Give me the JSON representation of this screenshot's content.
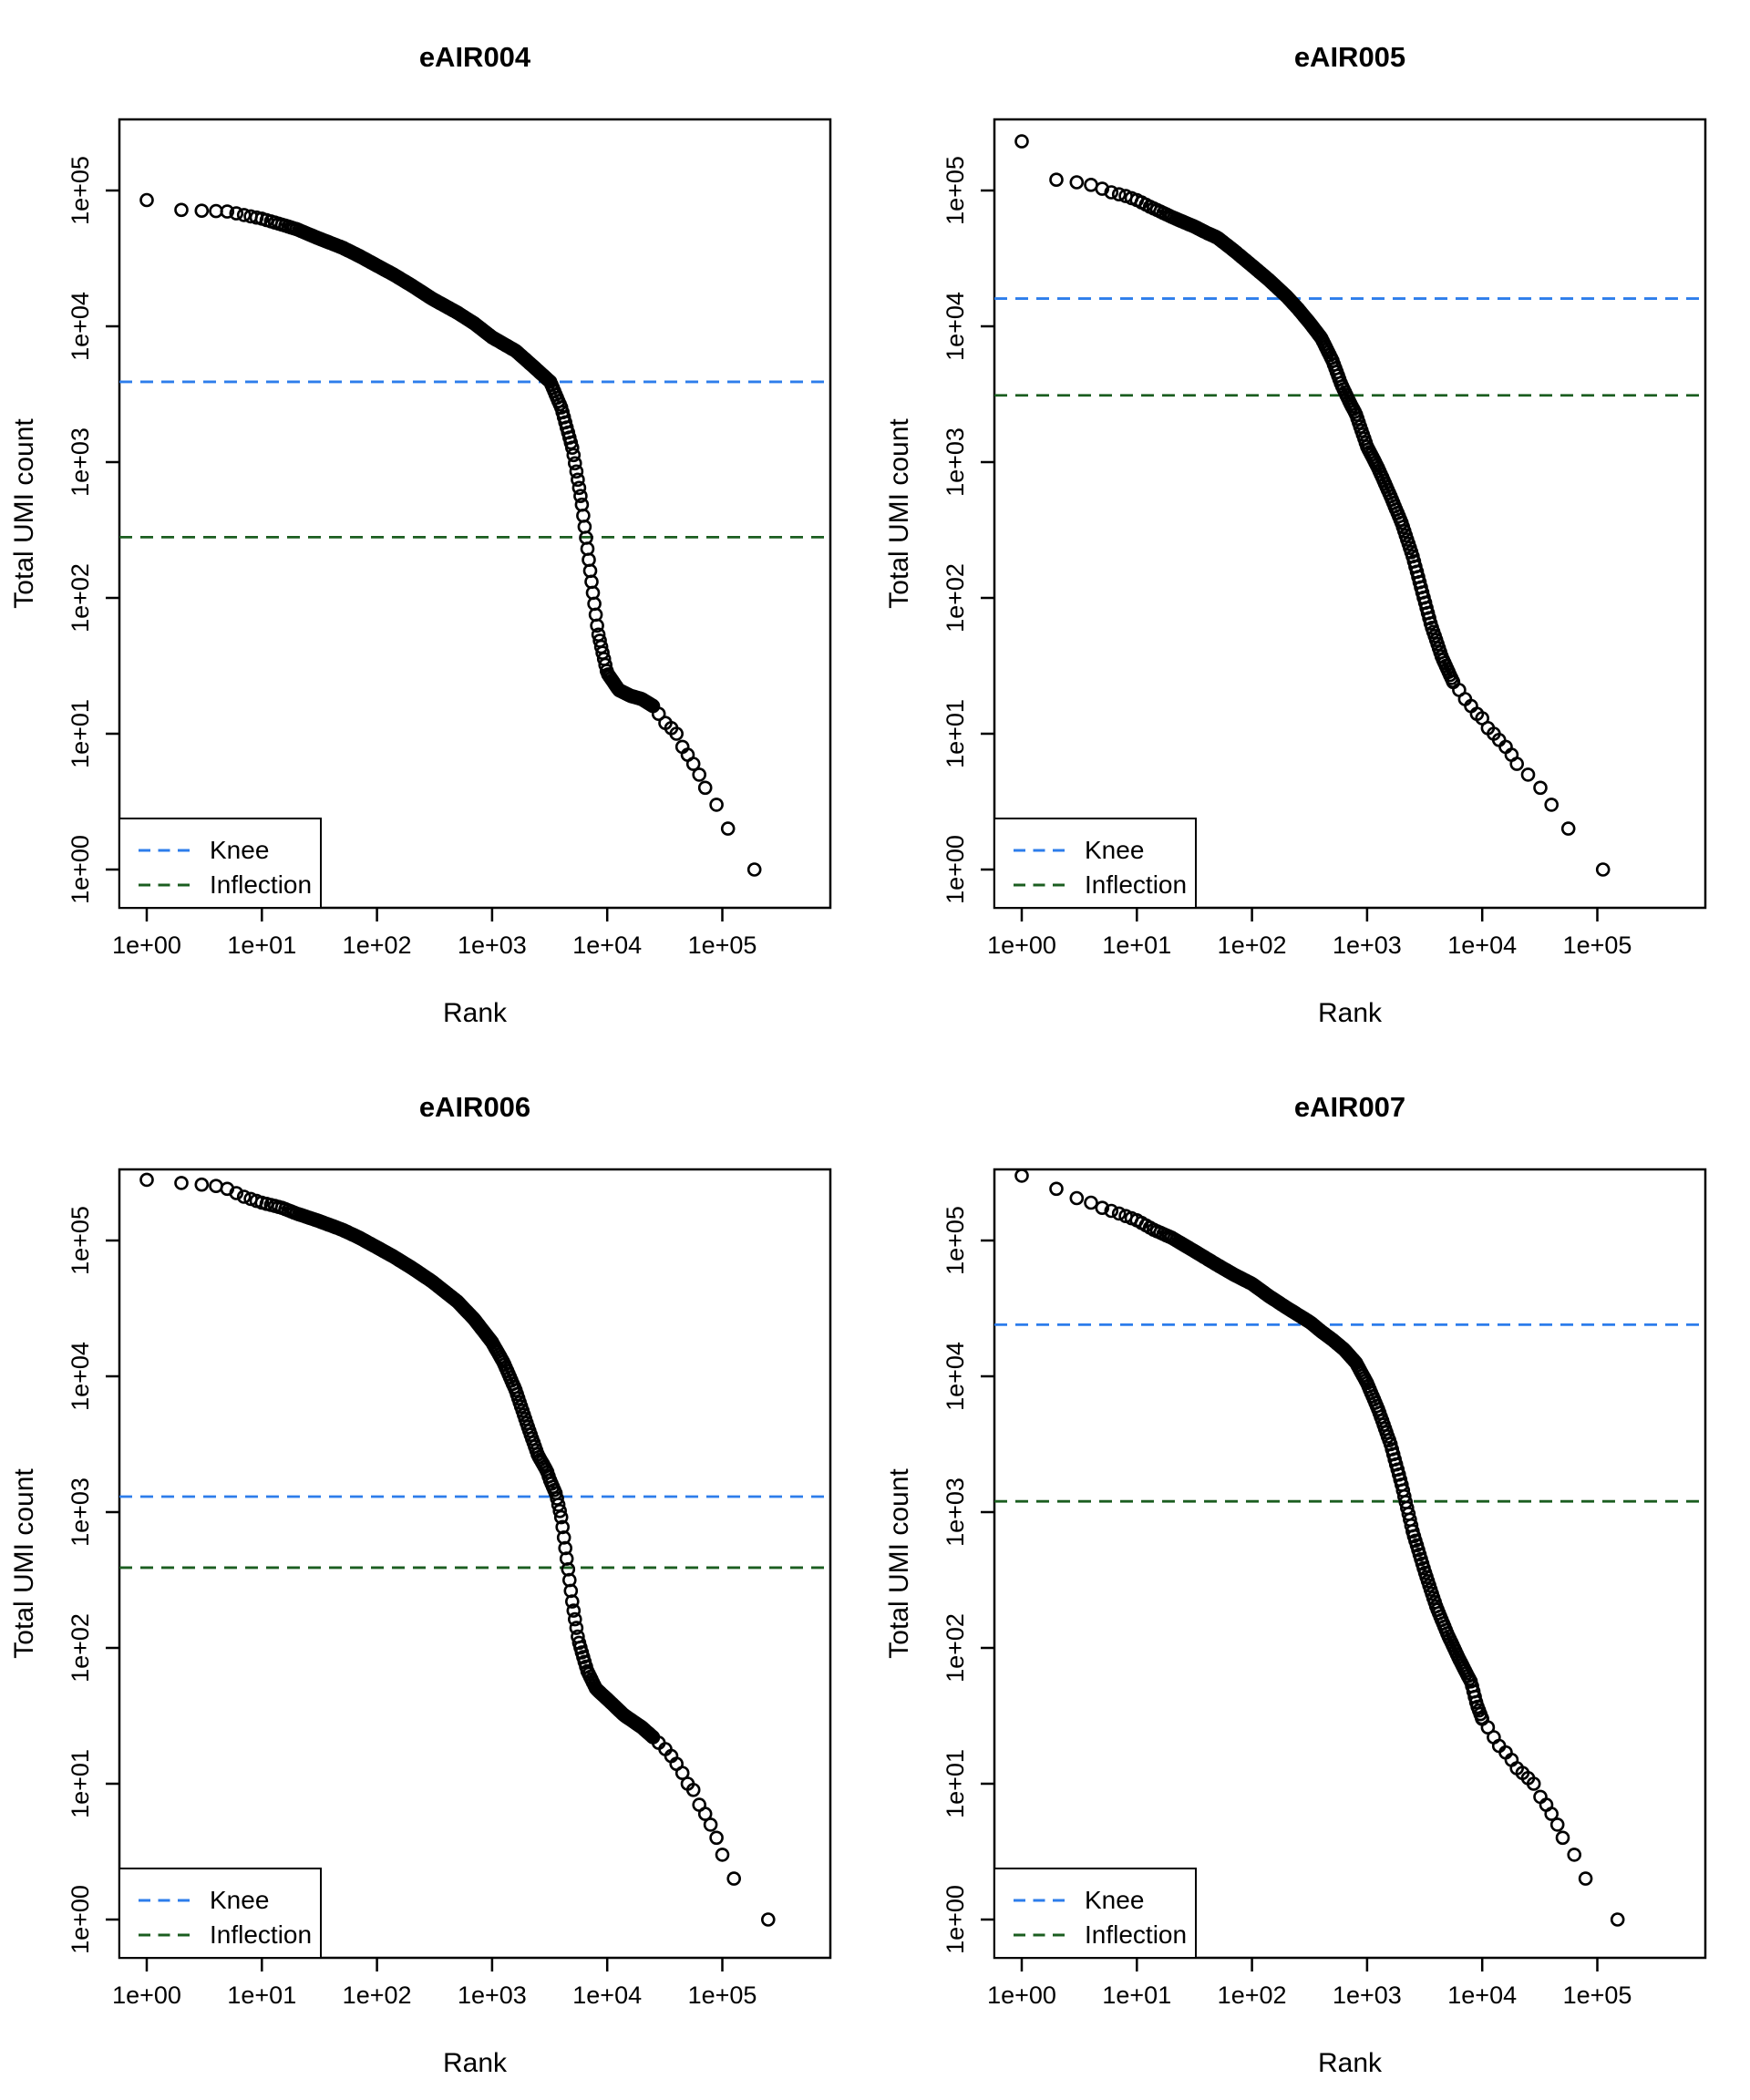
{
  "page": {
    "background_color": "#FFFFFF"
  },
  "shared": {
    "legend": {
      "knee_label": "Knee",
      "inflection_label": "Inflection"
    },
    "colors": {
      "knee_line": "#2D7DEB",
      "inflection_line": "#1B5E20",
      "point_stroke": "#000000",
      "axis_color": "#000000"
    }
  },
  "chart_data": [
    {
      "type": "scatter",
      "title": "eAIR004",
      "xlabel": "Rank",
      "ylabel": "Total UMI count",
      "x_scale": "log10",
      "y_scale": "log10",
      "x_ticks": [
        "1e+00",
        "1e+01",
        "1e+02",
        "1e+03",
        "1e+04",
        "1e+05"
      ],
      "y_ticks": [
        "1e+00",
        "1e+01",
        "1e+02",
        "1e+03",
        "1e+04",
        "1e+05"
      ],
      "xlim_log10": [
        -0.24,
        5.94
      ],
      "ylim_log10": [
        -0.28,
        5.52
      ],
      "legend_position": "bottomleft",
      "grid": false,
      "knee": 3900,
      "inflection": 280,
      "tail_sparse_from_rank": 25000,
      "points_rank_count": [
        [
          1,
          85000
        ],
        [
          2,
          72000
        ],
        [
          3,
          71000
        ],
        [
          4,
          70500
        ],
        [
          5,
          70000
        ],
        [
          7,
          66000
        ],
        [
          10,
          62000
        ],
        [
          14,
          57000
        ],
        [
          20,
          52000
        ],
        [
          30,
          45000
        ],
        [
          50,
          38000
        ],
        [
          70,
          33000
        ],
        [
          100,
          28000
        ],
        [
          140,
          24000
        ],
        [
          200,
          20000
        ],
        [
          300,
          16000
        ],
        [
          500,
          12600
        ],
        [
          700,
          10500
        ],
        [
          1000,
          8300
        ],
        [
          1600,
          6600
        ],
        [
          2200,
          5200
        ],
        [
          3200,
          3900
        ],
        [
          4000,
          2500
        ],
        [
          5000,
          1250
        ],
        [
          6000,
          500
        ],
        [
          7100,
          160
        ],
        [
          8300,
          56
        ],
        [
          10000,
          28
        ],
        [
          12600,
          21
        ],
        [
          16000,
          19
        ],
        [
          20000,
          18
        ],
        [
          25000,
          16
        ],
        [
          28000,
          14
        ],
        [
          32000,
          12
        ],
        [
          36000,
          11
        ],
        [
          40000,
          10
        ],
        [
          45000,
          8
        ],
        [
          50000,
          7
        ],
        [
          56000,
          6
        ],
        [
          63000,
          5
        ],
        [
          71000,
          4
        ],
        [
          89000,
          3
        ],
        [
          112000,
          2
        ],
        [
          190000,
          1
        ]
      ]
    },
    {
      "type": "scatter",
      "title": "eAIR005",
      "xlabel": "Rank",
      "ylabel": "Total UMI count",
      "x_scale": "log10",
      "y_scale": "log10",
      "x_ticks": [
        "1e+00",
        "1e+01",
        "1e+02",
        "1e+03",
        "1e+04",
        "1e+05"
      ],
      "y_ticks": [
        "1e+00",
        "1e+01",
        "1e+02",
        "1e+03",
        "1e+04",
        "1e+05"
      ],
      "xlim_log10": [
        -0.24,
        5.94
      ],
      "ylim_log10": [
        -0.28,
        5.52
      ],
      "legend_position": "bottomleft",
      "grid": false,
      "knee": 16000,
      "inflection": 3100,
      "tail_sparse_from_rank": 5600,
      "points_rank_count": [
        [
          1,
          230000
        ],
        [
          2,
          120000
        ],
        [
          3,
          115000
        ],
        [
          4,
          110000
        ],
        [
          5,
          103000
        ],
        [
          6,
          97000
        ],
        [
          8,
          91000
        ],
        [
          10,
          85000
        ],
        [
          13,
          76000
        ],
        [
          16,
          70000
        ],
        [
          20,
          64000
        ],
        [
          25,
          59000
        ],
        [
          32,
          54000
        ],
        [
          40,
          49000
        ],
        [
          50,
          45000
        ],
        [
          70,
          36000
        ],
        [
          100,
          28000
        ],
        [
          140,
          22000
        ],
        [
          200,
          16600
        ],
        [
          250,
          13500
        ],
        [
          320,
          10500
        ],
        [
          400,
          8200
        ],
        [
          500,
          5600
        ],
        [
          600,
          3700
        ],
        [
          700,
          2800
        ],
        [
          800,
          2250
        ],
        [
          1000,
          1300
        ],
        [
          1250,
          900
        ],
        [
          1600,
          560
        ],
        [
          2000,
          355
        ],
        [
          2500,
          200
        ],
        [
          3000,
          112
        ],
        [
          3600,
          63
        ],
        [
          4500,
          36
        ],
        [
          5600,
          24
        ],
        [
          6300,
          21
        ],
        [
          7100,
          18
        ],
        [
          8000,
          16
        ],
        [
          9000,
          14
        ],
        [
          10000,
          13
        ],
        [
          11200,
          11
        ],
        [
          12600,
          10
        ],
        [
          14000,
          9
        ],
        [
          16000,
          8
        ],
        [
          18000,
          7
        ],
        [
          20000,
          6
        ],
        [
          25000,
          5
        ],
        [
          32000,
          4
        ],
        [
          40000,
          3
        ],
        [
          56000,
          2
        ],
        [
          112000,
          1
        ]
      ]
    },
    {
      "type": "scatter",
      "title": "eAIR006",
      "xlabel": "Rank",
      "ylabel": "Total UMI count",
      "x_scale": "log10",
      "y_scale": "log10",
      "x_ticks": [
        "1e+00",
        "1e+01",
        "1e+02",
        "1e+03",
        "1e+04",
        "1e+05"
      ],
      "y_ticks": [
        "1e+00",
        "1e+01",
        "1e+02",
        "1e+03",
        "1e+04",
        "1e+05"
      ],
      "xlim_log10": [
        -0.24,
        5.94
      ],
      "ylim_log10": [
        -0.28,
        5.52
      ],
      "legend_position": "bottomleft",
      "grid": false,
      "knee": 1300,
      "inflection": 390,
      "tail_sparse_from_rank": 25000,
      "points_rank_count": [
        [
          1,
          280000
        ],
        [
          2,
          265000
        ],
        [
          3,
          258000
        ],
        [
          4,
          252000
        ],
        [
          5,
          240000
        ],
        [
          7,
          210000
        ],
        [
          10,
          190000
        ],
        [
          15,
          174000
        ],
        [
          20,
          158000
        ],
        [
          30,
          141000
        ],
        [
          50,
          120000
        ],
        [
          70,
          105000
        ],
        [
          100,
          89000
        ],
        [
          140,
          76000
        ],
        [
          200,
          63000
        ],
        [
          300,
          50000
        ],
        [
          500,
          35500
        ],
        [
          700,
          26300
        ],
        [
          1000,
          17800
        ],
        [
          1260,
          12600
        ],
        [
          1600,
          7900
        ],
        [
          2000,
          4500
        ],
        [
          2500,
          2630
        ],
        [
          3000,
          2000
        ],
        [
          3200,
          1700
        ],
        [
          3600,
          1350
        ],
        [
          4000,
          900
        ],
        [
          4500,
          420
        ],
        [
          5000,
          210
        ],
        [
          5600,
          115
        ],
        [
          6700,
          68
        ],
        [
          8000,
          50
        ],
        [
          10000,
          42
        ],
        [
          14000,
          32
        ],
        [
          20000,
          26
        ],
        [
          25000,
          22
        ],
        [
          28000,
          20
        ],
        [
          32000,
          18
        ],
        [
          36000,
          16
        ],
        [
          40000,
          14
        ],
        [
          45000,
          12
        ],
        [
          50000,
          10
        ],
        [
          56000,
          9
        ],
        [
          63000,
          7
        ],
        [
          71000,
          6
        ],
        [
          79000,
          5
        ],
        [
          89000,
          4
        ],
        [
          100000,
          3
        ],
        [
          126000,
          2
        ],
        [
          250000,
          1
        ]
      ]
    },
    {
      "type": "scatter",
      "title": "eAIR007",
      "xlabel": "Rank",
      "ylabel": "Total UMI count",
      "x_scale": "log10",
      "y_scale": "log10",
      "x_ticks": [
        "1e+00",
        "1e+01",
        "1e+02",
        "1e+03",
        "1e+04",
        "1e+05"
      ],
      "y_ticks": [
        "1e+00",
        "1e+01",
        "1e+02",
        "1e+03",
        "1e+04",
        "1e+05"
      ],
      "xlim_log10": [
        -0.24,
        5.94
      ],
      "ylim_log10": [
        -0.28,
        5.52
      ],
      "legend_position": "bottomleft",
      "grid": false,
      "knee": 24000,
      "inflection": 1200,
      "tail_sparse_from_rank": 10000,
      "points_rank_count": [
        [
          1,
          300000
        ],
        [
          2,
          240000
        ],
        [
          3,
          205000
        ],
        [
          4,
          190000
        ],
        [
          5,
          174000
        ],
        [
          7,
          158000
        ],
        [
          10,
          141000
        ],
        [
          14,
          120000
        ],
        [
          20,
          105000
        ],
        [
          32,
          83000
        ],
        [
          50,
          66000
        ],
        [
          70,
          56000
        ],
        [
          100,
          48000
        ],
        [
          140,
          39000
        ],
        [
          200,
          32000
        ],
        [
          320,
          25000
        ],
        [
          400,
          21400
        ],
        [
          500,
          18600
        ],
        [
          630,
          15800
        ],
        [
          800,
          12600
        ],
        [
          1000,
          8900
        ],
        [
          1260,
          5600
        ],
        [
          1600,
          3160
        ],
        [
          2000,
          1580
        ],
        [
          2500,
          710
        ],
        [
          3200,
          355
        ],
        [
          4000,
          200
        ],
        [
          5000,
          126
        ],
        [
          6300,
          83
        ],
        [
          7100,
          68
        ],
        [
          8000,
          56
        ],
        [
          9000,
          38
        ],
        [
          10000,
          30
        ],
        [
          11200,
          26
        ],
        [
          12600,
          22
        ],
        [
          14000,
          19
        ],
        [
          16000,
          17
        ],
        [
          18000,
          15
        ],
        [
          20000,
          13
        ],
        [
          22400,
          12
        ],
        [
          25000,
          11
        ],
        [
          28000,
          10
        ],
        [
          32000,
          8
        ],
        [
          36000,
          7
        ],
        [
          40000,
          6
        ],
        [
          45000,
          5
        ],
        [
          50000,
          4
        ],
        [
          63000,
          3
        ],
        [
          79000,
          2
        ],
        [
          150000,
          1
        ]
      ]
    }
  ]
}
